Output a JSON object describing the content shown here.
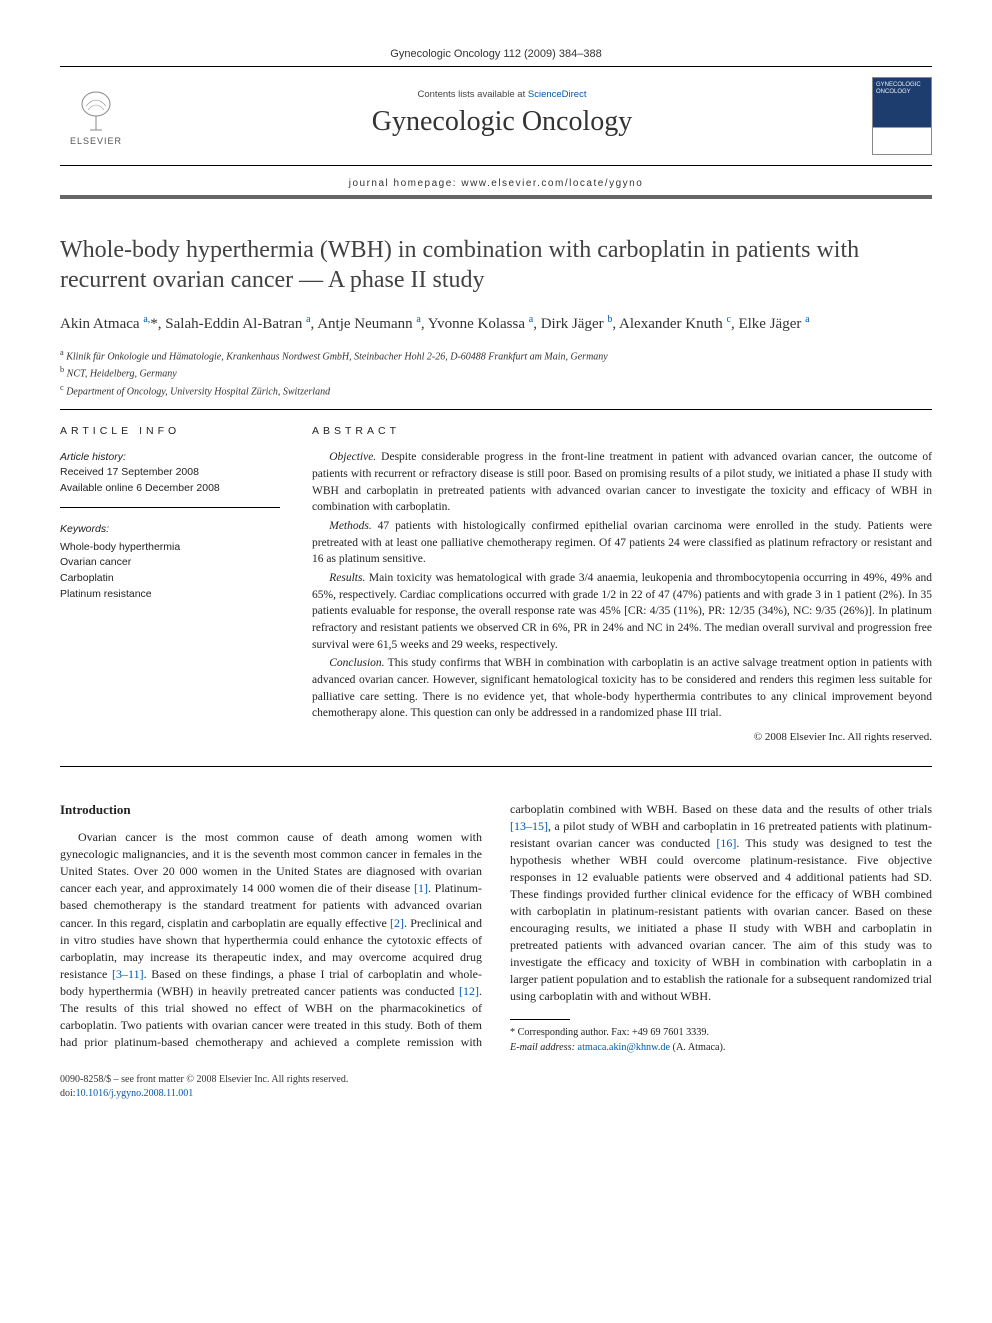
{
  "journal": {
    "citation": "Gynecologic Oncology 112 (2009) 384–388",
    "contents_prefix": "Contents lists available at ",
    "contents_link": "ScienceDirect",
    "title": "Gynecologic Oncology",
    "homepage_label": "journal homepage: ",
    "homepage_url": "www.elsevier.com/locate/ygyno",
    "publisher_brand": "ELSEVIER",
    "cover_title": "GYNECOLOGIC ONCOLOGY"
  },
  "article": {
    "title": "Whole-body hyperthermia (WBH) in combination with carboplatin in patients with recurrent ovarian cancer — A phase II study",
    "authors_html": "Akin Atmaca <sup>a,</sup>*, Salah-Eddin Al-Batran <sup>a</sup>, Antje Neumann <sup>a</sup>, Yvonne Kolassa <sup>a</sup>, Dirk Jäger <sup>b</sup>, Alexander Knuth <sup>c</sup>, Elke Jäger <sup>a</sup>",
    "affiliations": [
      {
        "sup": "a",
        "text": "Klinik für Onkologie und Hämatologie, Krankenhaus Nordwest GmbH, Steinbacher Hohl 2-26, D-60488 Frankfurt am Main, Germany"
      },
      {
        "sup": "b",
        "text": "NCT, Heidelberg, Germany"
      },
      {
        "sup": "c",
        "text": "Department of Oncology, University Hospital Zürich, Switzerland"
      }
    ]
  },
  "article_info": {
    "section_label": "ARTICLE INFO",
    "history_label": "Article history:",
    "received": "Received 17 September 2008",
    "online": "Available online 6 December 2008",
    "keywords_label": "Keywords:",
    "keywords": [
      "Whole-body hyperthermia",
      "Ovarian cancer",
      "Carboplatin",
      "Platinum resistance"
    ]
  },
  "abstract": {
    "section_label": "ABSTRACT",
    "objective_label": "Objective.",
    "objective": "Despite considerable progress in the front-line treatment in patient with advanced ovarian cancer, the outcome of patients with recurrent or refractory disease is still poor. Based on promising results of a pilot study, we initiated a phase II study with WBH and carboplatin in pretreated patients with advanced ovarian cancer to investigate the toxicity and efficacy of WBH in combination with carboplatin.",
    "methods_label": "Methods.",
    "methods": "47 patients with histologically confirmed epithelial ovarian carcinoma were enrolled in the study. Patients were pretreated with at least one palliative chemotherapy regimen. Of 47 patients 24 were classified as platinum refractory or resistant and 16 as platinum sensitive.",
    "results_label": "Results.",
    "results": "Main toxicity was hematological with grade 3/4 anaemia, leukopenia and thrombocytopenia occurring in 49%, 49% and 65%, respectively. Cardiac complications occurred with grade 1/2 in 22 of 47 (47%) patients and with grade 3 in 1 patient (2%). In 35 patients evaluable for response, the overall response rate was 45% [CR: 4/35 (11%), PR: 12/35 (34%), NC: 9/35 (26%)]. In platinum refractory and resistant patients we observed CR in 6%, PR in 24% and NC in 24%. The median overall survival and progression free survival were 61,5 weeks and 29 weeks, respectively.",
    "conclusion_label": "Conclusion.",
    "conclusion": "This study confirms that WBH in combination with carboplatin is an active salvage treatment option in patients with advanced ovarian cancer. However, significant hematological toxicity has to be considered and renders this regimen less suitable for palliative care setting. There is no evidence yet, that whole-body hyperthermia contributes to any clinical improvement beyond chemotherapy alone. This question can only be addressed in a randomized phase III trial.",
    "copyright": "© 2008 Elsevier Inc. All rights reserved."
  },
  "body": {
    "introduction_heading": "Introduction",
    "para1_pre": "Ovarian cancer is the most common cause of death among women with gynecologic malignancies, and it is the seventh most common cancer in females in the United States. Over 20 000 women in the United States are diagnosed with ovarian cancer each year, and approximately 14 000 women die of their disease ",
    "ref1": "[1]",
    "para1_mid1": ". Platinum-based chemotherapy is the standard treatment for patients with advanced ovarian cancer. In this regard, cisplatin and carboplatin are equally effective ",
    "ref2": "[2]",
    "para1_mid2": ". Preclinical and in vitro studies have shown that hyperthermia could enhance the cytotoxic effects of carboplatin, may increase its therapeutic index, and may overcome acquired drug resistance ",
    "ref3": "[3–11]",
    "para1_mid3": ". Based on these findings, a phase I trial of carboplatin and whole-body hyperthermia (WBH) in heavily pretreated cancer patients was conducted ",
    "ref12": "[12]",
    "para1_post": ". The results of this trial showed no effect",
    "para2_pre": "of WBH on the pharmacokinetics of carboplatin. Two patients with ovarian cancer were treated in this study. Both of them had prior platinum-based chemotherapy and achieved a complete remission with carboplatin combined with WBH. Based on these data and the results of other trials ",
    "ref1315": "[13–15]",
    "para2_mid1": ", a pilot study of WBH and carboplatin in 16 pretreated patients with platinum-resistant ovarian cancer was conducted ",
    "ref16": "[16]",
    "para2_post": ". This study was designed to test the hypothesis whether WBH could overcome platinum-resistance. Five objective responses in 12 evaluable patients were observed and 4 additional patients had SD. These findings provided further clinical evidence for the efficacy of WBH combined with carboplatin in platinum-resistant patients with ovarian cancer. Based on these encouraging results, we initiated a phase II study with WBH and carboplatin in pretreated patients with advanced ovarian cancer. The aim of this study was to investigate the efficacy and toxicity of WBH in combination with carboplatin in a larger patient population and to establish the rationale for a subsequent randomized trial using carboplatin with and without WBH."
  },
  "footnotes": {
    "corresponding": "* Corresponding author. Fax: +49 69 7601 3339.",
    "email_label": "E-mail address: ",
    "email": "atmaca.akin@khnw.de",
    "email_suffix": " (A. Atmaca)."
  },
  "footer": {
    "line1": "0090-8258/$ – see front matter © 2008 Elsevier Inc. All rights reserved.",
    "doi_label": "doi:",
    "doi": "10.1016/j.ygyno.2008.11.001"
  },
  "colors": {
    "link": "#0058b0",
    "rule": "#000000",
    "cover_bg": "#1c3d6e"
  }
}
